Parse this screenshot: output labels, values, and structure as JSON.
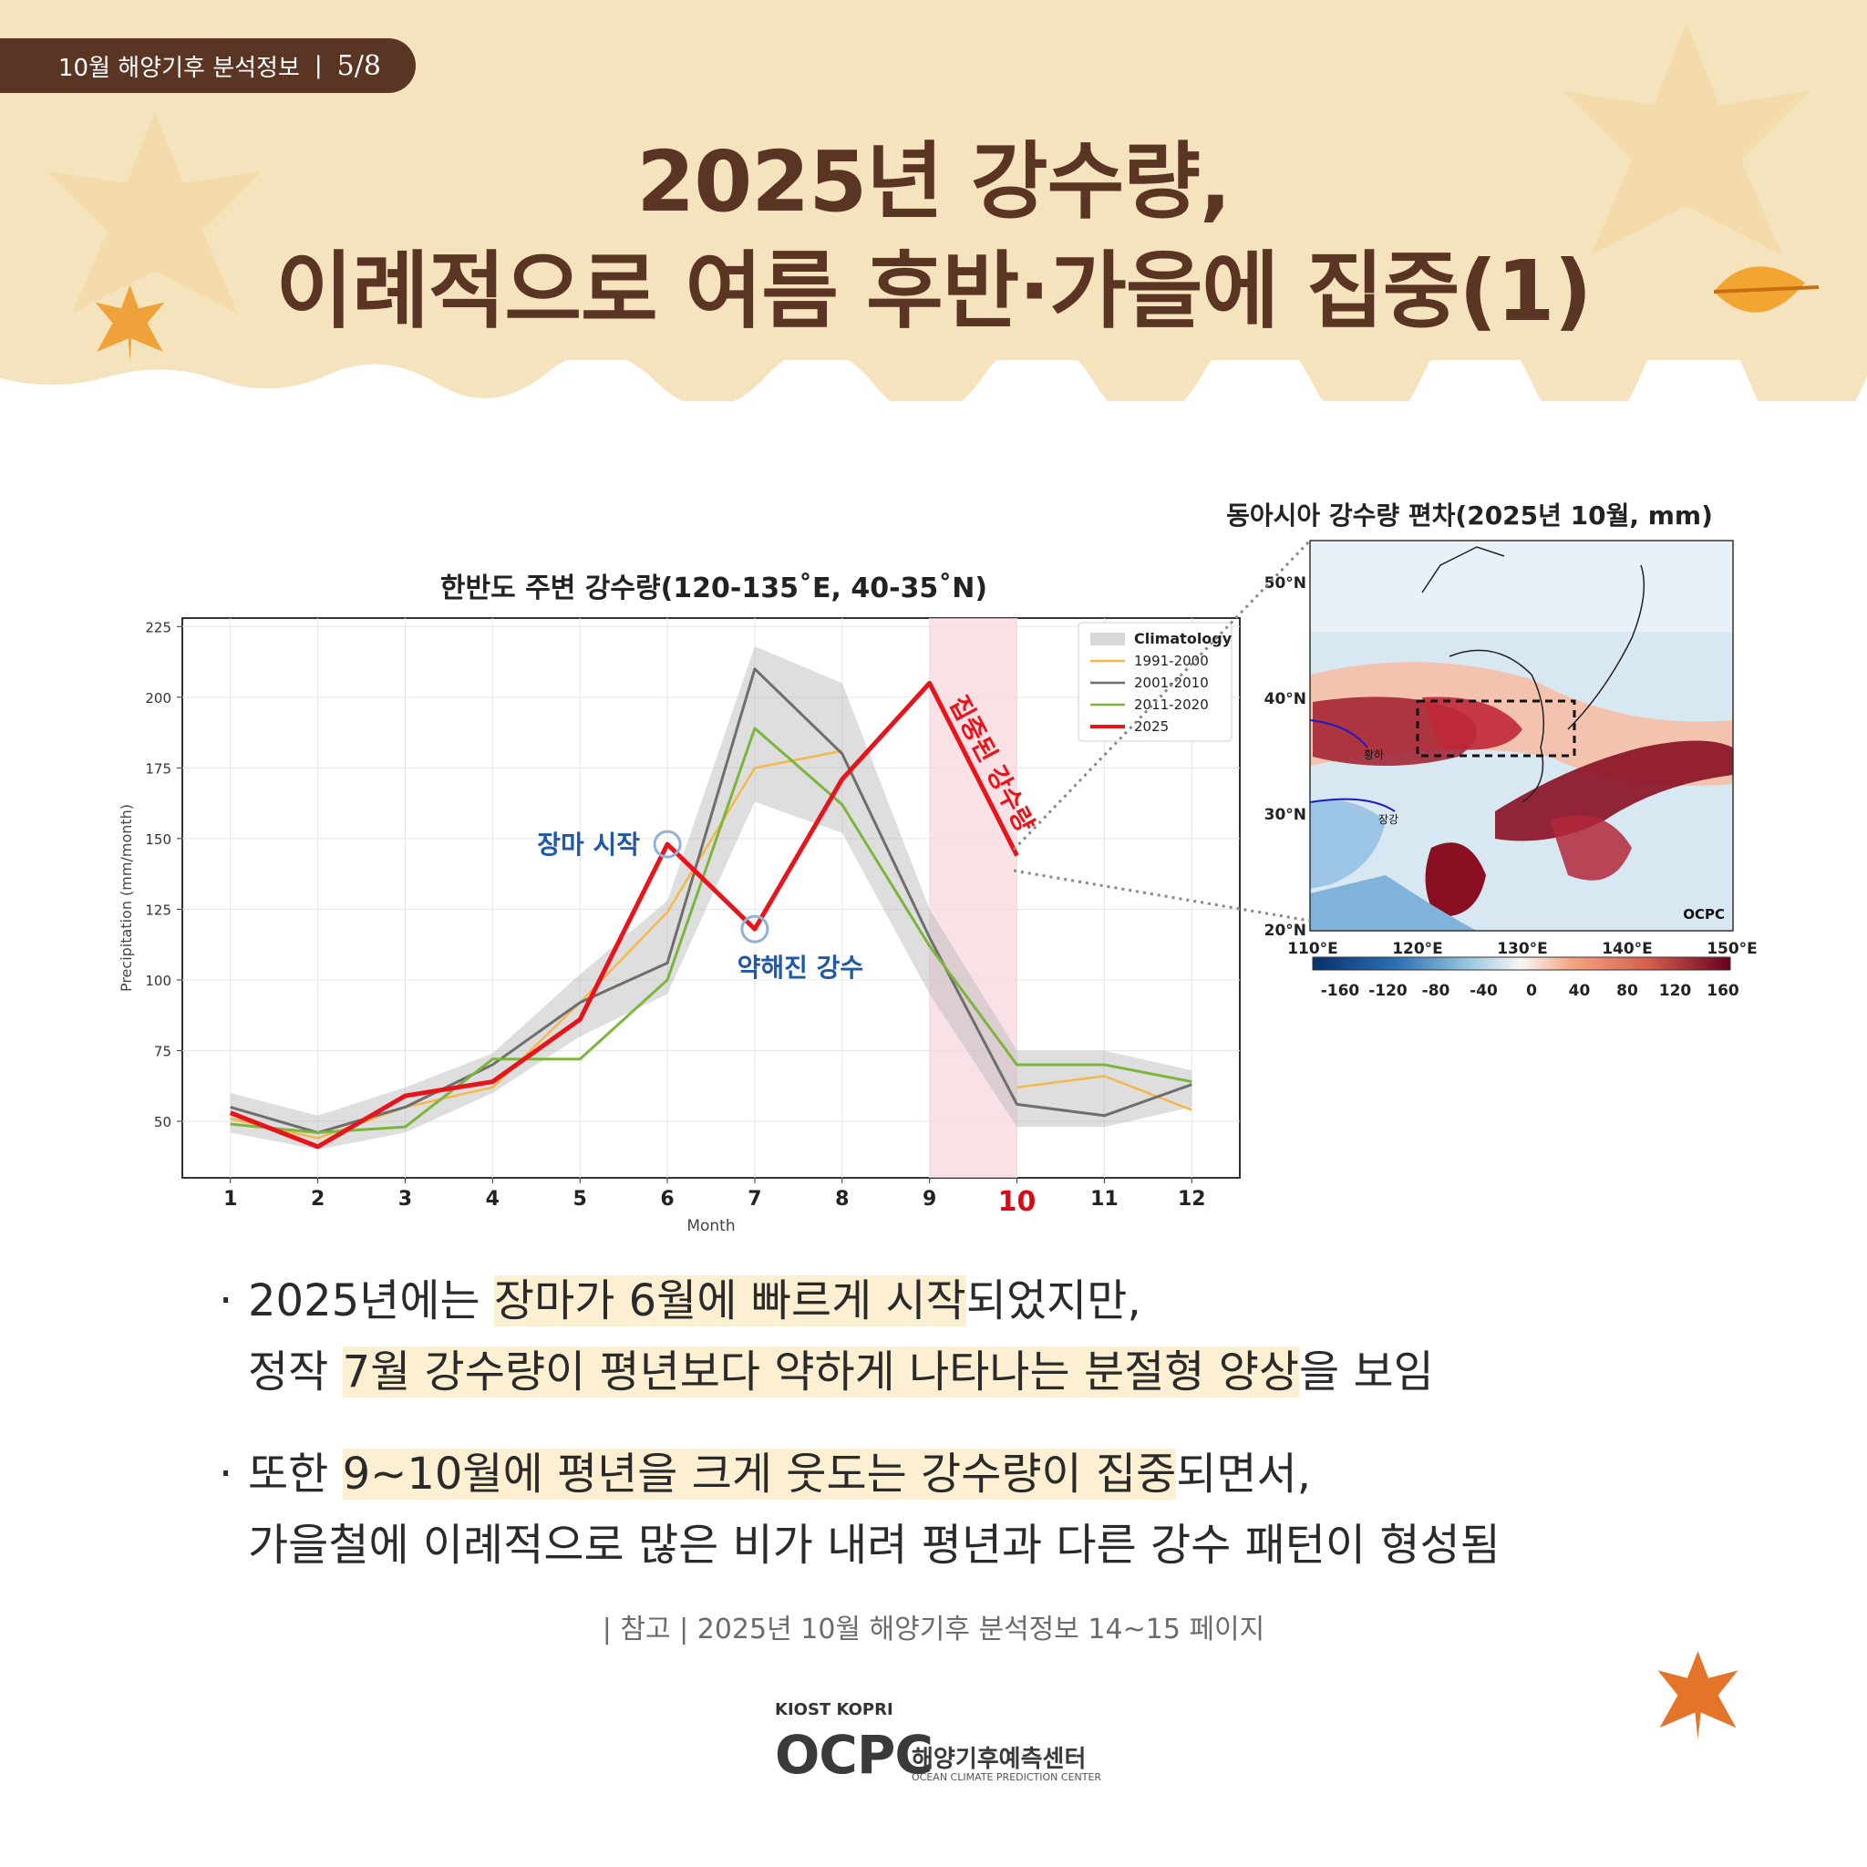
{
  "header": {
    "badge_text": "10월 해양기후 분석정보",
    "badge_sep": "|",
    "badge_page": "5/8",
    "title_line1": "2025년 강수량,",
    "title_line2": "이례적으로 여름 후반·가을에 집중(1)"
  },
  "colors": {
    "brand_brown": "#5b3524",
    "header_bg": "#f5e3bd",
    "highlight": "#fdf0d2",
    "series_1991": "#f5b84a",
    "series_2001": "#6e6e6e",
    "series_2011": "#7cb53e",
    "series_2025": "#e8141c",
    "annotation_blue": "#1f58a8"
  },
  "chart_data": [
    {
      "type": "line",
      "title": "한반도 주변 강수량(120-135˚E, 40-35˚N)",
      "xlabel": "Month",
      "ylabel": "Precipitation (mm/month)",
      "x": [
        1,
        2,
        3,
        4,
        5,
        6,
        7,
        8,
        9,
        10,
        11,
        12
      ],
      "x_tick_labels": [
        "1",
        "2",
        "3",
        "4",
        "5",
        "6",
        "7",
        "8",
        "9",
        "10",
        "11",
        "12"
      ],
      "highlight_tick": "10",
      "y_ticks": [
        50,
        75,
        100,
        125,
        150,
        175,
        200,
        225
      ],
      "ylim": [
        30,
        228
      ],
      "xlim": [
        0.45,
        12.55
      ],
      "grid": true,
      "legend_position": "top-right",
      "legend_title": "Climatology",
      "shaded_band": {
        "x": [
          1,
          2,
          3,
          4,
          5,
          6,
          7,
          8,
          9,
          10,
          11,
          12
        ],
        "lower": [
          46,
          40,
          46,
          60,
          80,
          95,
          163,
          152,
          95,
          48,
          48,
          55
        ],
        "upper": [
          60,
          52,
          62,
          74,
          102,
          128,
          218,
          205,
          125,
          75,
          75,
          68
        ]
      },
      "highlight_span": [
        9,
        10
      ],
      "series": [
        {
          "name": "1991-2000",
          "values": [
            51,
            44,
            55,
            62,
            92,
            124,
            175,
            181,
            null,
            62,
            66,
            54
          ]
        },
        {
          "name": "2001-2010",
          "values": [
            55,
            46,
            55,
            70,
            92,
            106,
            210,
            180,
            115,
            56,
            52,
            63
          ]
        },
        {
          "name": "2011-2020",
          "values": [
            49,
            46,
            48,
            72,
            72,
            100,
            189,
            162,
            112,
            70,
            70,
            64
          ]
        },
        {
          "name": "2025",
          "values": [
            53,
            41,
            59,
            64,
            86,
            148,
            118,
            171,
            205,
            144,
            null,
            null
          ]
        }
      ],
      "annotations": [
        {
          "text": "장마 시작",
          "x": 6,
          "y": 148
        },
        {
          "text": "약해진 강수",
          "x": 7,
          "y": 118
        },
        {
          "text": "집중된 강수량",
          "x": 9.5,
          "y": 175
        }
      ]
    },
    {
      "type": "heatmap",
      "title": "동아시아 강수량 편차(2025년 10월, mm)",
      "x_tick_labels": [
        "110°E",
        "120°E",
        "130°E",
        "140°E",
        "150°E"
      ],
      "y_tick_labels": [
        "50°N",
        "40°N",
        "30°N",
        "20°N"
      ],
      "colorbar_ticks": [
        "-160",
        "-120",
        "-80",
        "-40",
        "0",
        "40",
        "80",
        "120",
        "160"
      ],
      "watermark": "OCPC",
      "region_labels": [
        "황하",
        "장강"
      ]
    }
  ],
  "bullets": [
    {
      "dot": "·",
      "l1_a": "2025년에는 ",
      "l1_hl": "장마가 6월에 빠르게 시작",
      "l1_b": "되었지만,",
      "l2_a": "정작 ",
      "l2_hl": "7월 강수량이 평년보다 약하게 나타나는 분절형 양상",
      "l2_b": "을 보임"
    },
    {
      "dot": "·",
      "l1_a": "또한 ",
      "l1_hl": "9~10월에 평년을 크게 웃도는 강수량이 집중",
      "l1_b": "되면서,",
      "l2_a": "가을철에 이례적으로 많은 비가 내려 평년과 다른 강수 패턴이 형성됨",
      "l2_hl": "",
      "l2_b": ""
    }
  ],
  "reference": "| 참고 |  2025년 10월 해양기후 분석정보 14~15 페이지",
  "logo": {
    "top": "KIOST KOPRI",
    "main": "OCPC",
    "kr": "해양기후예측센터",
    "en": "OCEAN CLIMATE PREDICTION CENTER"
  }
}
